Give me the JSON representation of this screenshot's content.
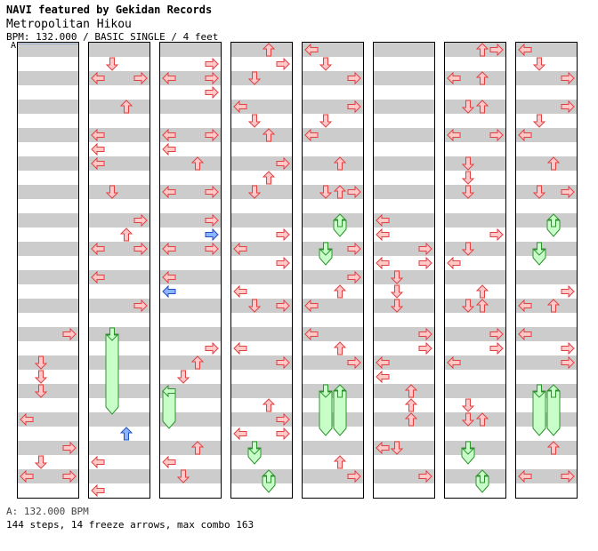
{
  "header": {
    "title": "NAVI featured by Gekidan Records",
    "song": "Metropolitan Hikou",
    "info": "BPM: 132.000 / BASIC SINGLE / 4 feet"
  },
  "marker": "A",
  "footer": {
    "bpm_line": "A: 132.000 BPM",
    "summary": "144 steps, 14 freeze arrows, max combo 163"
  },
  "colors": {
    "stripe": "#cccccc",
    "arrow_fill": "#ffc8c8",
    "arrow_stroke": "#e04040",
    "shock_fill": "#8cb4ff",
    "shock_stroke": "#2050c0",
    "freeze_fill": "#c8ffc8",
    "freeze_stroke": "#309030",
    "column_border": "#000000"
  },
  "chart_data": {
    "type": "step-chart",
    "columns": 8,
    "measures_per_column": 8,
    "lanes": [
      "left",
      "down",
      "up",
      "right"
    ],
    "notes": [
      [
        {
          "m": 5,
          "s": 0,
          "lane": "right"
        },
        {
          "m": 5,
          "s": 2,
          "lane": "down"
        },
        {
          "m": 5,
          "s": 3,
          "lane": "down"
        },
        {
          "m": 5,
          "s": 4,
          "lane": "down"
        },
        {
          "m": 6,
          "s": 2,
          "lane": "left"
        },
        {
          "m": 7,
          "s": 0,
          "lane": "right"
        },
        {
          "m": 7,
          "s": 1,
          "lane": "down"
        },
        {
          "m": 7,
          "s": 2,
          "lane": "left"
        },
        {
          "m": 7,
          "s": 2,
          "lane": "right"
        }
      ],
      [
        {
          "m": 0,
          "s": 1,
          "lane": "down"
        },
        {
          "m": 0,
          "s": 2,
          "lane": "left"
        },
        {
          "m": 0,
          "s": 2,
          "lane": "right"
        },
        {
          "m": 1,
          "s": 0,
          "lane": "up"
        },
        {
          "m": 1,
          "s": 2,
          "lane": "left"
        },
        {
          "m": 1,
          "s": 3,
          "lane": "left"
        },
        {
          "m": 2,
          "s": 0,
          "lane": "left"
        },
        {
          "m": 2,
          "s": 2,
          "lane": "down"
        },
        {
          "m": 3,
          "s": 0,
          "lane": "right"
        },
        {
          "m": 3,
          "s": 1,
          "lane": "up"
        },
        {
          "m": 3,
          "s": 2,
          "lane": "left"
        },
        {
          "m": 3,
          "s": 2,
          "lane": "right"
        },
        {
          "m": 4,
          "s": 0,
          "lane": "left"
        },
        {
          "m": 4,
          "s": 2,
          "lane": "right"
        },
        {
          "m": 5,
          "s": 0,
          "lane": "down",
          "freeze": 5.5
        },
        {
          "m": 6,
          "s": 3,
          "lane": "up",
          "shock": true
        },
        {
          "m": 7,
          "s": 1,
          "lane": "left"
        },
        {
          "m": 7,
          "s": 3,
          "lane": "left"
        }
      ],
      [
        {
          "m": 0,
          "s": 1,
          "lane": "right"
        },
        {
          "m": 0,
          "s": 2,
          "lane": "left"
        },
        {
          "m": 0,
          "s": 2,
          "lane": "right"
        },
        {
          "m": 0,
          "s": 3,
          "lane": "right"
        },
        {
          "m": 1,
          "s": 2,
          "lane": "left"
        },
        {
          "m": 1,
          "s": 2,
          "lane": "right"
        },
        {
          "m": 1,
          "s": 3,
          "lane": "left"
        },
        {
          "m": 2,
          "s": 0,
          "lane": "up"
        },
        {
          "m": 2,
          "s": 2,
          "lane": "left"
        },
        {
          "m": 2,
          "s": 2,
          "lane": "right"
        },
        {
          "m": 3,
          "s": 0,
          "lane": "right"
        },
        {
          "m": 3,
          "s": 1,
          "lane": "right",
          "shock": true
        },
        {
          "m": 3,
          "s": 2,
          "lane": "left"
        },
        {
          "m": 3,
          "s": 2,
          "lane": "right"
        },
        {
          "m": 4,
          "s": 0,
          "lane": "left"
        },
        {
          "m": 4,
          "s": 1,
          "lane": "left",
          "shock": true
        },
        {
          "m": 5,
          "s": 1,
          "lane": "right"
        },
        {
          "m": 5,
          "s": 2,
          "lane": "up"
        },
        {
          "m": 5,
          "s": 3,
          "lane": "down"
        },
        {
          "m": 6,
          "s": 0,
          "lane": "left",
          "freeze": 2.5
        },
        {
          "m": 7,
          "s": 0,
          "lane": "up"
        },
        {
          "m": 7,
          "s": 1,
          "lane": "left"
        },
        {
          "m": 7,
          "s": 2,
          "lane": "down"
        }
      ],
      [
        {
          "m": 0,
          "s": 0,
          "lane": "up"
        },
        {
          "m": 0,
          "s": 1,
          "lane": "right"
        },
        {
          "m": 0,
          "s": 2,
          "lane": "down"
        },
        {
          "m": 1,
          "s": 0,
          "lane": "left"
        },
        {
          "m": 1,
          "s": 1,
          "lane": "down"
        },
        {
          "m": 1,
          "s": 2,
          "lane": "up"
        },
        {
          "m": 2,
          "s": 0,
          "lane": "right"
        },
        {
          "m": 2,
          "s": 1,
          "lane": "up"
        },
        {
          "m": 2,
          "s": 2,
          "lane": "down"
        },
        {
          "m": 3,
          "s": 1,
          "lane": "right"
        },
        {
          "m": 3,
          "s": 2,
          "lane": "left"
        },
        {
          "m": 3,
          "s": 3,
          "lane": "right"
        },
        {
          "m": 4,
          "s": 1,
          "lane": "left"
        },
        {
          "m": 4,
          "s": 2,
          "lane": "down"
        },
        {
          "m": 4,
          "s": 2,
          "lane": "right"
        },
        {
          "m": 5,
          "s": 1,
          "lane": "left"
        },
        {
          "m": 5,
          "s": 2,
          "lane": "right"
        },
        {
          "m": 6,
          "s": 1,
          "lane": "up"
        },
        {
          "m": 6,
          "s": 2,
          "lane": "right"
        },
        {
          "m": 6,
          "s": 3,
          "lane": "left"
        },
        {
          "m": 6,
          "s": 3,
          "lane": "right"
        },
        {
          "m": 7,
          "s": 0,
          "lane": "down",
          "freeze": 1
        },
        {
          "m": 7,
          "s": 2,
          "lane": "up",
          "freeze": 1
        }
      ],
      [
        {
          "m": 0,
          "s": 0,
          "lane": "left"
        },
        {
          "m": 0,
          "s": 1,
          "lane": "down"
        },
        {
          "m": 0,
          "s": 2,
          "lane": "right"
        },
        {
          "m": 1,
          "s": 0,
          "lane": "right"
        },
        {
          "m": 1,
          "s": 1,
          "lane": "down"
        },
        {
          "m": 1,
          "s": 2,
          "lane": "left"
        },
        {
          "m": 2,
          "s": 0,
          "lane": "up"
        },
        {
          "m": 2,
          "s": 2,
          "lane": "down"
        },
        {
          "m": 2,
          "s": 2,
          "lane": "up"
        },
        {
          "m": 2,
          "s": 2,
          "lane": "right"
        },
        {
          "m": 3,
          "s": 0,
          "lane": "up",
          "freeze": 1
        },
        {
          "m": 3,
          "s": 2,
          "lane": "down",
          "freeze": 1
        },
        {
          "m": 3,
          "s": 2,
          "lane": "right"
        },
        {
          "m": 4,
          "s": 0,
          "lane": "right"
        },
        {
          "m": 4,
          "s": 1,
          "lane": "up"
        },
        {
          "m": 4,
          "s": 2,
          "lane": "left"
        },
        {
          "m": 5,
          "s": 0,
          "lane": "left"
        },
        {
          "m": 5,
          "s": 1,
          "lane": "up"
        },
        {
          "m": 5,
          "s": 2,
          "lane": "right"
        },
        {
          "m": 6,
          "s": 0,
          "lane": "down",
          "freeze": 3
        },
        {
          "m": 6,
          "s": 0,
          "lane": "up",
          "freeze": 3
        },
        {
          "m": 7,
          "s": 1,
          "lane": "up"
        },
        {
          "m": 7,
          "s": 2,
          "lane": "right"
        }
      ],
      [
        {
          "m": 3,
          "s": 0,
          "lane": "left"
        },
        {
          "m": 3,
          "s": 1,
          "lane": "left"
        },
        {
          "m": 3,
          "s": 2,
          "lane": "right"
        },
        {
          "m": 3,
          "s": 3,
          "lane": "right"
        },
        {
          "m": 3,
          "s": 3,
          "lane": "left"
        },
        {
          "m": 4,
          "s": 0,
          "lane": "down"
        },
        {
          "m": 4,
          "s": 1,
          "lane": "down"
        },
        {
          "m": 4,
          "s": 2,
          "lane": "down"
        },
        {
          "m": 5,
          "s": 0,
          "lane": "right"
        },
        {
          "m": 5,
          "s": 1,
          "lane": "right"
        },
        {
          "m": 5,
          "s": 2,
          "lane": "left"
        },
        {
          "m": 5,
          "s": 3,
          "lane": "left"
        },
        {
          "m": 6,
          "s": 0,
          "lane": "up"
        },
        {
          "m": 6,
          "s": 1,
          "lane": "up"
        },
        {
          "m": 6,
          "s": 2,
          "lane": "up"
        },
        {
          "m": 7,
          "s": 0,
          "lane": "left"
        },
        {
          "m": 7,
          "s": 0,
          "lane": "down"
        },
        {
          "m": 7,
          "s": 2,
          "lane": "right"
        }
      ],
      [
        {
          "m": 0,
          "s": 0,
          "lane": "up"
        },
        {
          "m": 0,
          "s": 0,
          "lane": "right"
        },
        {
          "m": 0,
          "s": 2,
          "lane": "left"
        },
        {
          "m": 0,
          "s": 2,
          "lane": "up"
        },
        {
          "m": 1,
          "s": 0,
          "lane": "down"
        },
        {
          "m": 1,
          "s": 0,
          "lane": "up"
        },
        {
          "m": 1,
          "s": 2,
          "lane": "left"
        },
        {
          "m": 1,
          "s": 2,
          "lane": "right"
        },
        {
          "m": 2,
          "s": 0,
          "lane": "down"
        },
        {
          "m": 2,
          "s": 1,
          "lane": "down"
        },
        {
          "m": 2,
          "s": 2,
          "lane": "down"
        },
        {
          "m": 3,
          "s": 1,
          "lane": "right"
        },
        {
          "m": 3,
          "s": 2,
          "lane": "down"
        },
        {
          "m": 3,
          "s": 3,
          "lane": "left"
        },
        {
          "m": 4,
          "s": 1,
          "lane": "up"
        },
        {
          "m": 4,
          "s": 2,
          "lane": "down"
        },
        {
          "m": 4,
          "s": 2,
          "lane": "up"
        },
        {
          "m": 5,
          "s": 0,
          "lane": "right"
        },
        {
          "m": 5,
          "s": 1,
          "lane": "right"
        },
        {
          "m": 5,
          "s": 2,
          "lane": "left"
        },
        {
          "m": 6,
          "s": 1,
          "lane": "down"
        },
        {
          "m": 6,
          "s": 2,
          "lane": "down"
        },
        {
          "m": 6,
          "s": 2,
          "lane": "up"
        },
        {
          "m": 7,
          "s": 0,
          "lane": "down",
          "freeze": 1
        },
        {
          "m": 7,
          "s": 2,
          "lane": "up",
          "freeze": 1
        }
      ],
      [
        {
          "m": 0,
          "s": 0,
          "lane": "left"
        },
        {
          "m": 0,
          "s": 1,
          "lane": "down"
        },
        {
          "m": 0,
          "s": 2,
          "lane": "right"
        },
        {
          "m": 1,
          "s": 0,
          "lane": "right"
        },
        {
          "m": 1,
          "s": 1,
          "lane": "down"
        },
        {
          "m": 1,
          "s": 2,
          "lane": "left"
        },
        {
          "m": 2,
          "s": 0,
          "lane": "up"
        },
        {
          "m": 2,
          "s": 2,
          "lane": "down"
        },
        {
          "m": 2,
          "s": 2,
          "lane": "right"
        },
        {
          "m": 3,
          "s": 0,
          "lane": "up",
          "freeze": 1
        },
        {
          "m": 3,
          "s": 2,
          "lane": "down",
          "freeze": 1
        },
        {
          "m": 4,
          "s": 1,
          "lane": "right"
        },
        {
          "m": 4,
          "s": 2,
          "lane": "left"
        },
        {
          "m": 4,
          "s": 2,
          "lane": "up"
        },
        {
          "m": 5,
          "s": 0,
          "lane": "left"
        },
        {
          "m": 5,
          "s": 1,
          "lane": "right"
        },
        {
          "m": 5,
          "s": 2,
          "lane": "right"
        },
        {
          "m": 6,
          "s": 0,
          "lane": "down",
          "freeze": 3
        },
        {
          "m": 6,
          "s": 0,
          "lane": "up",
          "freeze": 3
        },
        {
          "m": 7,
          "s": 0,
          "lane": "up"
        },
        {
          "m": 7,
          "s": 2,
          "lane": "left"
        },
        {
          "m": 7,
          "s": 2,
          "lane": "right"
        }
      ]
    ]
  }
}
